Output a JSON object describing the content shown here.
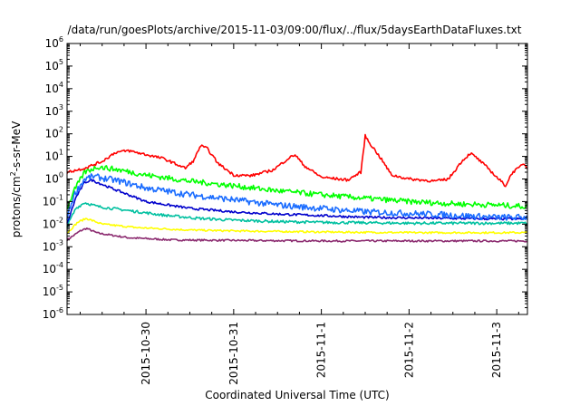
{
  "chart_data": {
    "type": "line",
    "title": "/data/run/goesPlots/archive/2015-11-03/09:00/flux/../flux/5daysEarthDataFluxes.txt",
    "xlabel": "Coordinated Universal Time (UTC)",
    "ylabel": {
      "base": "protons/cm",
      "sup": "2",
      "rest": "-s-sr-MeV"
    },
    "yscale": "log",
    "ylim_exponents": [
      -6,
      6
    ],
    "y_ticks": [
      {
        "base": "10",
        "exp": "-6",
        "e": -6
      },
      {
        "base": "10",
        "exp": "-5",
        "e": -5
      },
      {
        "base": "10",
        "exp": "-4",
        "e": -4
      },
      {
        "base": "10",
        "exp": "-3",
        "e": -3
      },
      {
        "base": "10",
        "exp": "-2",
        "e": -2
      },
      {
        "base": "10",
        "exp": "-1",
        "e": -1
      },
      {
        "base": "10",
        "exp": "0",
        "e": 0
      },
      {
        "base": "10",
        "exp": "1",
        "e": 1
      },
      {
        "base": "10",
        "exp": "2",
        "e": 2
      },
      {
        "base": "10",
        "exp": "3",
        "e": 3
      },
      {
        "base": "10",
        "exp": "4",
        "e": 4
      },
      {
        "base": "10",
        "exp": "5",
        "e": 5
      },
      {
        "base": "10",
        "exp": "6",
        "e": 6
      }
    ],
    "x_range_days": [
      29.1,
      34.35
    ],
    "x_ticks": [
      {
        "label": "2015-10-30",
        "day": 30
      },
      {
        "label": "2015-10-31",
        "day": 31
      },
      {
        "label": "2015-11-1",
        "day": 32
      },
      {
        "label": "2015-11-2",
        "day": 33
      },
      {
        "label": "2015-11-3",
        "day": 34
      }
    ],
    "grid": false,
    "legend": "none",
    "series": [
      {
        "color": "#ff0000",
        "noise": 0.06,
        "points": [
          [
            29.1,
            2.0
          ],
          [
            29.3,
            3
          ],
          [
            29.5,
            6
          ],
          [
            29.65,
            15
          ],
          [
            29.8,
            18
          ],
          [
            30.0,
            12
          ],
          [
            30.2,
            8
          ],
          [
            30.45,
            3
          ],
          [
            30.55,
            7
          ],
          [
            30.62,
            30
          ],
          [
            30.7,
            22
          ],
          [
            30.82,
            5
          ],
          [
            31.0,
            1.5
          ],
          [
            31.2,
            1.4
          ],
          [
            31.45,
            2.5
          ],
          [
            31.62,
            8
          ],
          [
            31.7,
            12
          ],
          [
            31.8,
            4
          ],
          [
            32.0,
            1.2
          ],
          [
            32.3,
            0.9
          ],
          [
            32.45,
            2
          ],
          [
            32.5,
            80
          ],
          [
            32.55,
            40
          ],
          [
            32.68,
            8
          ],
          [
            32.8,
            1.5
          ],
          [
            33.0,
            1.0
          ],
          [
            33.3,
            0.8
          ],
          [
            33.45,
            1.0
          ],
          [
            33.6,
            6
          ],
          [
            33.7,
            14
          ],
          [
            33.78,
            8
          ],
          [
            33.9,
            3
          ],
          [
            34.0,
            1.2
          ],
          [
            34.1,
            0.5
          ],
          [
            34.18,
            2
          ],
          [
            34.25,
            3
          ],
          [
            34.3,
            5
          ],
          [
            34.35,
            3
          ]
        ]
      },
      {
        "color": "#00ff00",
        "noise": 0.12,
        "points": [
          [
            29.1,
            0.05
          ],
          [
            29.18,
            0.3
          ],
          [
            29.3,
            2
          ],
          [
            29.45,
            3.5
          ],
          [
            29.7,
            2.5
          ],
          [
            30.0,
            1.5
          ],
          [
            30.5,
            0.8
          ],
          [
            31.0,
            0.5
          ],
          [
            31.5,
            0.3
          ],
          [
            32.0,
            0.2
          ],
          [
            32.5,
            0.14
          ],
          [
            33.0,
            0.1
          ],
          [
            33.5,
            0.08
          ],
          [
            34.0,
            0.07
          ],
          [
            34.35,
            0.06
          ]
        ]
      },
      {
        "color": "#1a6cff",
        "noise": 0.14,
        "points": [
          [
            29.1,
            0.02
          ],
          [
            29.18,
            0.2
          ],
          [
            29.3,
            1.0
          ],
          [
            29.4,
            1.3
          ],
          [
            29.7,
            0.8
          ],
          [
            30.0,
            0.4
          ],
          [
            30.5,
            0.2
          ],
          [
            31.0,
            0.12
          ],
          [
            31.5,
            0.07
          ],
          [
            32.0,
            0.05
          ],
          [
            32.5,
            0.035
          ],
          [
            33.0,
            0.03
          ],
          [
            33.5,
            0.025
          ],
          [
            34.0,
            0.02
          ],
          [
            34.35,
            0.02
          ]
        ]
      },
      {
        "color": "#0000cc",
        "noise": 0.05,
        "points": [
          [
            29.1,
            0.01
          ],
          [
            29.2,
            0.15
          ],
          [
            29.3,
            0.7
          ],
          [
            29.38,
            0.9
          ],
          [
            29.6,
            0.4
          ],
          [
            30.0,
            0.1
          ],
          [
            30.5,
            0.05
          ],
          [
            31.0,
            0.035
          ],
          [
            31.5,
            0.028
          ],
          [
            32.0,
            0.024
          ],
          [
            32.5,
            0.02
          ],
          [
            33.0,
            0.019
          ],
          [
            33.5,
            0.018
          ],
          [
            34.0,
            0.017
          ],
          [
            34.35,
            0.017
          ]
        ]
      },
      {
        "color": "#00c0a0",
        "noise": 0.06,
        "points": [
          [
            29.1,
            0.008
          ],
          [
            29.2,
            0.05
          ],
          [
            29.3,
            0.09
          ],
          [
            29.45,
            0.06
          ],
          [
            29.8,
            0.04
          ],
          [
            30.2,
            0.025
          ],
          [
            30.6,
            0.018
          ],
          [
            31.0,
            0.015
          ],
          [
            31.5,
            0.013
          ],
          [
            32.0,
            0.012
          ],
          [
            33.0,
            0.011
          ],
          [
            34.0,
            0.011
          ],
          [
            34.35,
            0.011
          ]
        ]
      },
      {
        "color": "#ffff00",
        "noise": 0.04,
        "points": [
          [
            29.1,
            0.004
          ],
          [
            29.22,
            0.012
          ],
          [
            29.32,
            0.018
          ],
          [
            29.5,
            0.01
          ],
          [
            29.9,
            0.007
          ],
          [
            30.5,
            0.0055
          ],
          [
            31.0,
            0.005
          ],
          [
            32.0,
            0.0045
          ],
          [
            33.0,
            0.0042
          ],
          [
            34.0,
            0.0042
          ],
          [
            34.35,
            0.0042
          ]
        ]
      },
      {
        "color": "#8b2a6f",
        "noise": 0.04,
        "points": [
          [
            29.1,
            0.002
          ],
          [
            29.25,
            0.005
          ],
          [
            29.32,
            0.0065
          ],
          [
            29.45,
            0.004
          ],
          [
            29.8,
            0.0025
          ],
          [
            30.3,
            0.002
          ],
          [
            31.0,
            0.0019
          ],
          [
            32.0,
            0.0018
          ],
          [
            33.0,
            0.0018
          ],
          [
            34.0,
            0.0018
          ],
          [
            34.35,
            0.0018
          ]
        ]
      }
    ]
  }
}
